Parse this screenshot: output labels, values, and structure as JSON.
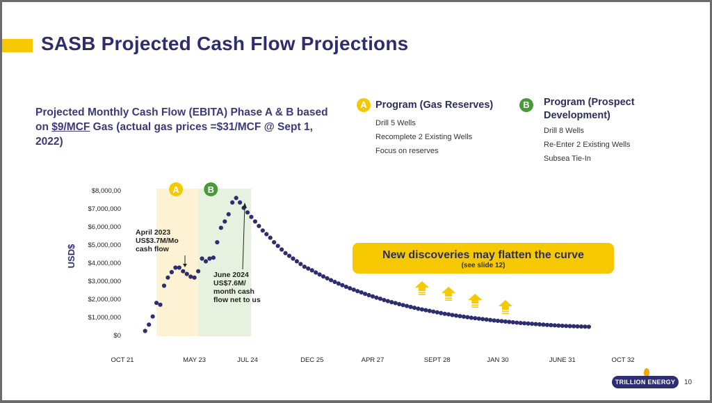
{
  "slide": {
    "title": "SASB Projected Cash Flow Projections",
    "subtitle_pre": "Projected Monthly Cash Flow (EBITA) Phase A & B based on ",
    "subtitle_link": "$9/MCF",
    "subtitle_post": " Gas (actual gas prices =$31/MCF @ Sept 1, 2022)",
    "page_number": "10",
    "logo_text": "TRILLION ENERGY"
  },
  "programs": [
    {
      "badge": "A",
      "badge_color": "#f5c800",
      "title": "Program (Gas Reserves)",
      "items": [
        "Drill 5 Wells",
        "Recomplete 2 Existing Wells",
        "Focus on reserves"
      ]
    },
    {
      "badge": "B",
      "badge_color": "#4a9a3a",
      "title_line1": "Program (Prospect",
      "title_line2": "Development)",
      "items": [
        "Drill 8 Wells",
        "Re-Enter 2 Existing Wells",
        "Subsea Tie-In"
      ]
    }
  ],
  "callout": {
    "line1": "New discoveries may flatten the curve",
    "line2": "(see slide 12)"
  },
  "annotations": {
    "a_lines": [
      "April 2023",
      "US$3.7M/Mo",
      "cash flow"
    ],
    "b_lines": [
      "June 2024",
      "US$7.6M/",
      "month cash",
      "flow net to us"
    ]
  },
  "colors": {
    "point": "#2e2e6e",
    "phase_a_band": "#fdf3d4",
    "phase_b_band": "#e6f1df",
    "arrow": "#f5c800"
  },
  "chart_data": {
    "type": "scatter",
    "title": "",
    "xlabel": "",
    "ylabel": "USD$",
    "ylim": [
      0,
      8000000
    ],
    "ytick_values": [
      0,
      1000000,
      2000000,
      3000000,
      4000000,
      5000000,
      6000000,
      7000000,
      8000000
    ],
    "ytick_labels": [
      "$0",
      "$1,000,000",
      "$2,000,000",
      "$3,000,000",
      "$4,000,000",
      "$5,000,000",
      "$6,000,000",
      "$7,000,000",
      "$8,000,00"
    ],
    "xtick_labels": [
      "OCT 21",
      "MAY 23",
      "JUL 24",
      "DEC 25",
      "APR 27",
      "SEPT 28",
      "JAN 30",
      "JUNE 31",
      "OCT 32"
    ],
    "x_unit": "month index from Oct 2021",
    "xtick_positions_months": [
      0,
      19,
      33,
      50,
      66,
      83,
      99,
      116,
      132
    ],
    "xlim_months": [
      0,
      132
    ],
    "grid": false,
    "legend": "none",
    "phase_bands": [
      {
        "label": "A",
        "start_month": 9,
        "end_month": 20
      },
      {
        "label": "B",
        "start_month": 20,
        "end_month": 34
      }
    ],
    "series": [
      {
        "name": "Projected Monthly Cash Flow",
        "x": [
          6,
          7,
          8,
          9,
          10,
          11,
          12,
          13,
          14,
          15,
          16,
          17,
          18,
          19,
          20,
          21,
          22,
          23,
          24,
          25,
          26,
          27,
          28,
          29,
          30,
          31,
          32,
          33,
          34,
          35,
          36,
          37,
          38,
          39,
          40,
          41,
          42,
          43,
          44,
          45,
          46,
          47,
          48,
          49,
          50,
          51,
          52,
          53,
          54,
          55,
          56,
          57,
          58,
          59,
          60,
          61,
          62,
          63,
          64,
          65,
          66,
          67,
          68,
          69,
          70,
          71,
          72,
          73,
          74,
          75,
          76,
          77,
          78,
          79,
          80,
          81,
          82,
          83,
          84,
          85,
          86,
          87,
          88,
          89,
          90,
          91,
          92,
          93,
          94,
          95,
          96,
          97,
          98,
          99,
          100,
          101,
          102,
          103,
          104,
          105,
          106,
          107,
          108,
          109,
          110,
          111,
          112,
          113,
          114,
          115,
          116,
          117,
          118,
          119,
          120,
          121,
          122,
          123
        ],
        "values": [
          250000,
          600000,
          1050000,
          1800000,
          1700000,
          2750000,
          3200000,
          3500000,
          3750000,
          3750000,
          3550000,
          3400000,
          3250000,
          3200000,
          3550000,
          4250000,
          4100000,
          4250000,
          4300000,
          5150000,
          5950000,
          6300000,
          6700000,
          7350000,
          7600000,
          7350000,
          7050000,
          6800000,
          6550000,
          6300000,
          6050000,
          5800000,
          5600000,
          5400000,
          5150000,
          4950000,
          4750000,
          4550000,
          4400000,
          4250000,
          4100000,
          3950000,
          3800000,
          3700000,
          3600000,
          3480000,
          3370000,
          3260000,
          3160000,
          3060000,
          2960000,
          2870000,
          2780000,
          2690000,
          2610000,
          2530000,
          2450000,
          2380000,
          2300000,
          2230000,
          2160000,
          2090000,
          2030000,
          1960000,
          1900000,
          1840000,
          1790000,
          1730000,
          1680000,
          1630000,
          1580000,
          1530000,
          1480000,
          1440000,
          1400000,
          1360000,
          1320000,
          1280000,
          1240000,
          1200000,
          1170000,
          1130000,
          1100000,
          1070000,
          1040000,
          1010000,
          980000,
          955000,
          930000,
          905000,
          880000,
          855000,
          830000,
          810000,
          790000,
          770000,
          750000,
          730000,
          710000,
          690000,
          675000,
          660000,
          645000,
          630000,
          615000,
          600000,
          585000,
          572000,
          560000,
          548000,
          537000,
          527000,
          518000,
          510000,
          502000,
          495000,
          488000,
          482000
        ]
      }
    ],
    "annotations": [
      {
        "text": "April 2023 US$3.7M/Mo cash flow",
        "points_to_month": 17
      },
      {
        "text": "June 2024 US$7.6M/ month cash flow net to us",
        "points_to_month": 31
      }
    ],
    "upward_arrows_months": [
      79,
      86,
      93,
      101
    ]
  }
}
